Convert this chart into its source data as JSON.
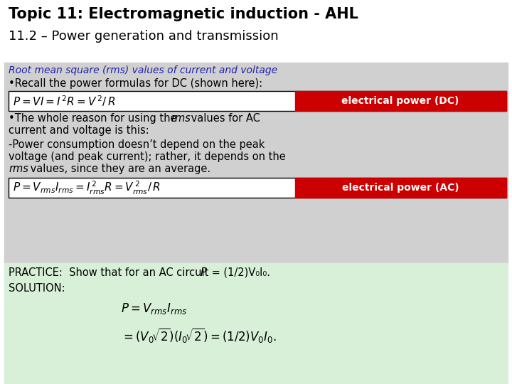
{
  "title_line1": "Topic 11: Electromagnetic induction - AHL",
  "title_line2": "11.2 – Power generation and transmission",
  "bg_color_main": "#d0d0d0",
  "bg_color_solution": "#d8f0d8",
  "red_box_color": "#cc0000",
  "subtitle_color": "#2222aa",
  "subtitle_text": "Root mean square (rms) values of current and voltage",
  "bullet1": "•Recall the power formulas for DC (shown here):",
  "label_dc": "electrical power (DC)",
  "bullet2a": "•The whole reason for using the ",
  "bullet2b": "rms",
  "bullet2c": " values for AC",
  "bullet2d": "current and voltage is this:",
  "power1": "-Power consumption doesn’t depend on the peak",
  "power2": "voltage (and peak current); rather, it depends on the",
  "power3a": "rms",
  "power3b": " values, since they are an average.",
  "label_ac": "electrical power (AC)",
  "practice_pre": "PRACTICE:  Show that for an AC circuit ",
  "practice_mid": "P",
  "practice_post": " = (1/2)V₀I₀.",
  "solution_label": "SOLUTION:",
  "fontsize_t1": 15,
  "fontsize_t2": 13,
  "fontsize_body": 10.5,
  "fontsize_formula": 10.5
}
